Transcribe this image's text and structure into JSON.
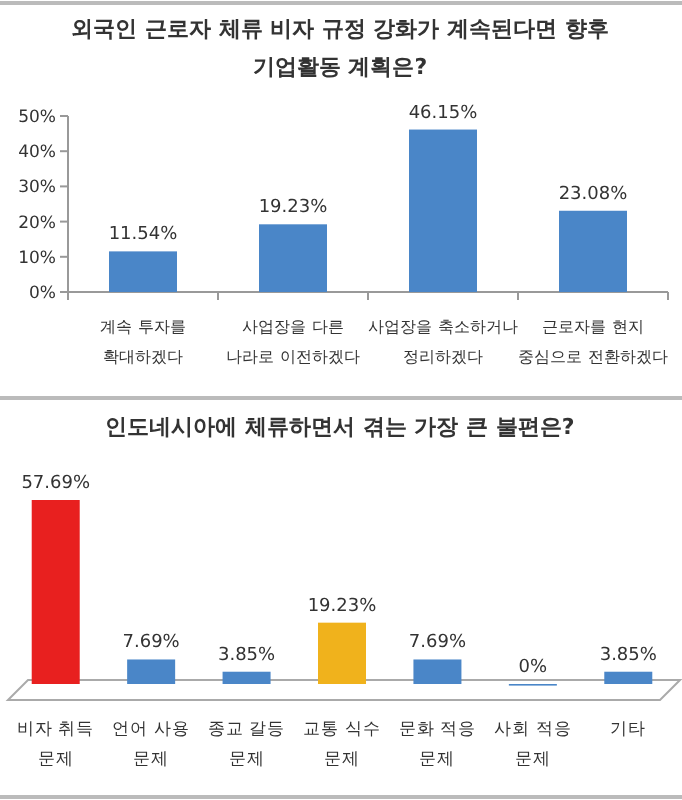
{
  "chart_data": [
    {
      "type": "bar",
      "title": "외국인 근로자 체류 비자 규정 강화가 계속된다면 향후\n기업활동 계획은?",
      "categories": [
        "계속 투자를\n확대하겠다",
        "사업장을 다른\n나라로 이전하겠다",
        "사업장을 축소하거나\n정리하겠다",
        "근로자를 현지\n중심으로 전환하겠다"
      ],
      "values": [
        11.54,
        19.23,
        46.15,
        23.08
      ],
      "color": "#4a86c8",
      "ylim": [
        0,
        50
      ],
      "yticks": [
        {
          "value": 0,
          "label": "0%"
        },
        {
          "value": 10,
          "label": "10%"
        },
        {
          "value": 20,
          "label": "20%"
        },
        {
          "value": 30,
          "label": "30%"
        },
        {
          "value": 40,
          "label": "40%"
        },
        {
          "value": 50,
          "label": "50%"
        }
      ],
      "value_labels": [
        "11.54%",
        "19.23%",
        "46.15%",
        "23.08%"
      ]
    },
    {
      "type": "bar",
      "title": "인도네시아에 체류하면서 겪는 가장 큰 불편은?",
      "categories": [
        "비자 취득\n문제",
        "언어 사용\n문제",
        "종교 갈등\n문제",
        "교통 식수\n문제",
        "문화 적응\n문제",
        "사회 적응\n문제",
        "기타"
      ],
      "values": [
        57.69,
        7.69,
        3.85,
        19.23,
        7.69,
        0,
        3.85
      ],
      "colors": [
        "#e8201f",
        "#4a86c8",
        "#4a86c8",
        "#f0b21c",
        "#4a86c8",
        "#4a86c8",
        "#4a86c8"
      ],
      "value_labels": [
        "57.69%",
        "7.69%",
        "3.85%",
        "19.23%",
        "7.69%",
        "0%",
        "3.85%"
      ]
    }
  ]
}
